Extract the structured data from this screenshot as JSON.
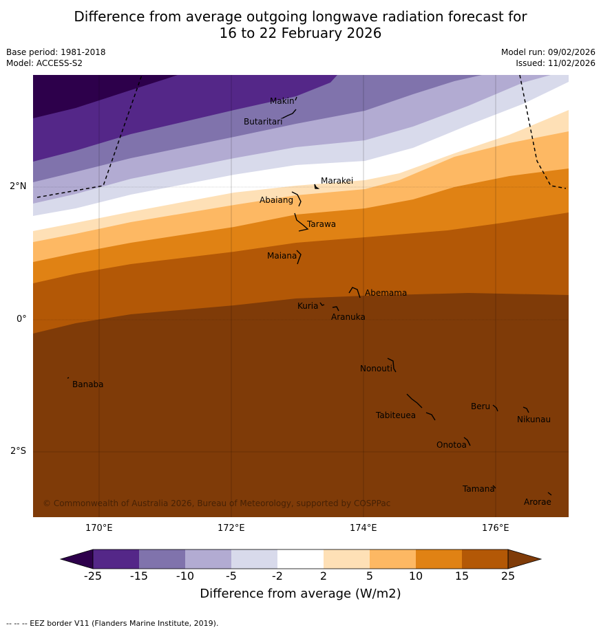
{
  "header": {
    "title_line1": "Difference from average outgoing longwave radiation forecast for",
    "title_line2": "16 to 22 February 2026"
  },
  "meta": {
    "base_period": "Base period: 1981-2018",
    "model": "Model: ACCESS-S2",
    "model_run": "Model run: 09/02/2026",
    "issued": "Issued: 11/02/2026"
  },
  "map": {
    "lat_labels": [
      "2°N",
      "0°",
      "2°S"
    ],
    "lon_labels": [
      "170°E",
      "172°E",
      "174°E",
      "176°E"
    ],
    "copyright": "© Commonwealth of Australia 2026, Bureau of Meteorology, supported by COSPPac",
    "places": [
      "Makin",
      "Butaritari",
      "Marakei",
      "Abaiang",
      "Tarawa",
      "Maiana",
      "Abemama",
      "Kuria",
      "Aranuka",
      "Nonouti",
      "Banaba",
      "Beru",
      "Nikunau",
      "Tabiteuea",
      "Onotoa",
      "Tamana",
      "Arorae"
    ]
  },
  "colorbar": {
    "ticks": [
      "-25",
      "-15",
      "-10",
      "-5",
      "-2",
      "2",
      "5",
      "10",
      "15",
      "25"
    ],
    "colors": [
      "#2d004b",
      "#542788",
      "#8073ac",
      "#b2abd2",
      "#d8daeb",
      "#ffffff",
      "#fee0b6",
      "#fdb863",
      "#e08214",
      "#b35806",
      "#7f3b08"
    ],
    "title": "Difference from average (W/m2)"
  },
  "footer": {
    "note": "--  --  -- EEZ border V11 (Flanders Marine Institute, 2019)."
  }
}
